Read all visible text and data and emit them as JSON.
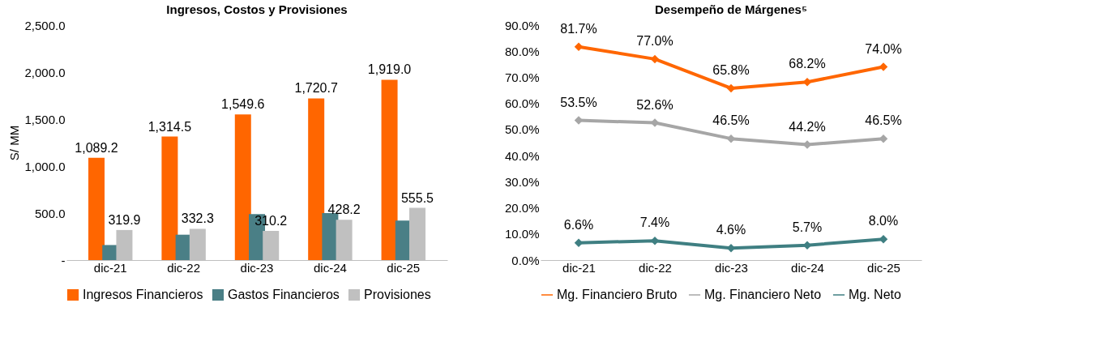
{
  "chart_data": [
    {
      "type": "bar",
      "title": "Ingresos, Costos y Provisiones",
      "ylabel": "S/ MM",
      "categories": [
        "dic-21",
        "dic-22",
        "dic-23",
        "dic-24",
        "dic-25"
      ],
      "series": [
        {
          "name": "Ingresos Financieros",
          "color": "#ff6600",
          "values": [
            1089.2,
            1314.5,
            1549.6,
            1720.7,
            1919.0
          ],
          "value_labels": [
            "1,089.2",
            "1,314.5",
            "1,549.6",
            "1,720.7",
            "1,919.0"
          ]
        },
        {
          "name": "Gastos Financieros",
          "color": "#4a7f86",
          "values": [
            160,
            270,
            490,
            500,
            420
          ]
        },
        {
          "name": "Provisiones",
          "color": "#c0c0c0",
          "values": [
            319.9,
            332.3,
            310.2,
            428.2,
            555.5
          ],
          "value_labels": [
            "319.9",
            "332.3",
            "310.2",
            "428.2",
            "555.5"
          ]
        }
      ],
      "ylim": [
        0,
        2500
      ],
      "yticks": [
        {
          "value": 0,
          "label": "-"
        },
        {
          "value": 500,
          "label": "500.0"
        },
        {
          "value": 1000,
          "label": "1,000.0"
        },
        {
          "value": 1500,
          "label": "1,500.0"
        },
        {
          "value": 2000,
          "label": "2,000.0"
        },
        {
          "value": 2500,
          "label": "2,500.0"
        }
      ],
      "legend": "bottom",
      "grid": false
    },
    {
      "type": "line",
      "title": "Desempeño de Márgenes⁵",
      "categories": [
        "dic-21",
        "dic-22",
        "dic-23",
        "dic-24",
        "dic-25"
      ],
      "series": [
        {
          "name": "Mg. Financiero Bruto",
          "color": "#ff6600",
          "values": [
            81.7,
            77.0,
            65.8,
            68.2,
            74.0
          ],
          "value_labels": [
            "81.7%",
            "77.0%",
            "65.8%",
            "68.2%",
            "74.0%"
          ]
        },
        {
          "name": "Mg. Financiero Neto",
          "color": "#a6a6a6",
          "values": [
            53.5,
            52.6,
            46.5,
            44.2,
            46.5
          ],
          "value_labels": [
            "53.5%",
            "52.6%",
            "46.5%",
            "44.2%",
            "46.5%"
          ]
        },
        {
          "name": "Mg. Neto",
          "color": "#3f7f82",
          "values": [
            6.6,
            7.4,
            4.6,
            5.7,
            8.0
          ],
          "value_labels": [
            "6.6%",
            "7.4%",
            "4.6%",
            "5.7%",
            "8.0%"
          ]
        }
      ],
      "ylim": [
        0,
        90
      ],
      "yticks": [
        {
          "value": 0,
          "label": "0.0%"
        },
        {
          "value": 10,
          "label": "10.0%"
        },
        {
          "value": 20,
          "label": "20.0%"
        },
        {
          "value": 30,
          "label": "30.0%"
        },
        {
          "value": 40,
          "label": "40.0%"
        },
        {
          "value": 50,
          "label": "50.0%"
        },
        {
          "value": 60,
          "label": "60.0%"
        },
        {
          "value": 70,
          "label": "70.0%"
        },
        {
          "value": 80,
          "label": "80.0%"
        },
        {
          "value": 90,
          "label": "90.0%"
        }
      ],
      "legend": "bottom",
      "grid": false,
      "marker": "diamond",
      "line_style": "solid"
    }
  ]
}
